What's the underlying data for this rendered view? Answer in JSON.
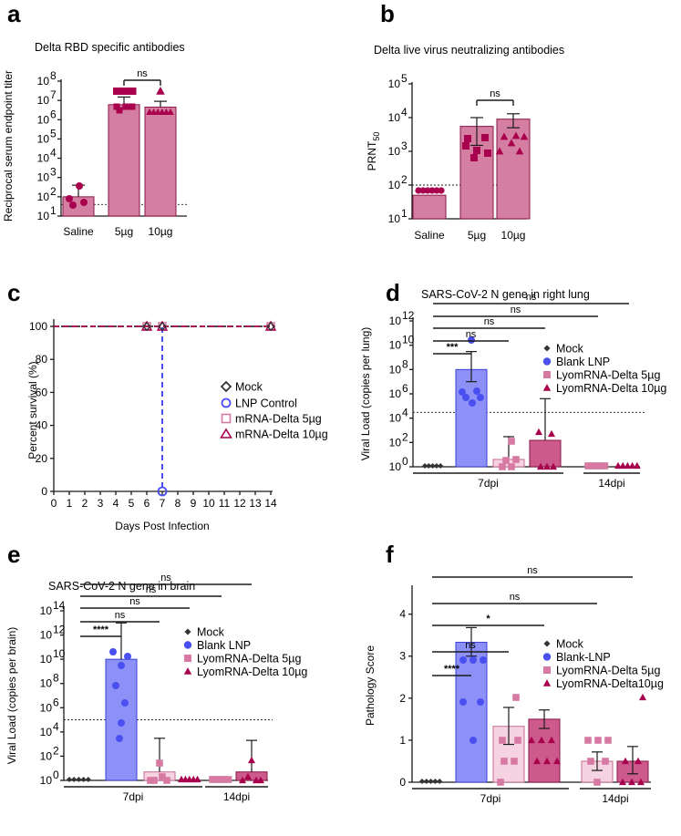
{
  "colors": {
    "saline": "#a8004c",
    "lyo5": "#d77aa3",
    "lyo10": "#a8004c",
    "bar_ab": "#d47ea1",
    "mock": "#333333",
    "lnp": "#4a4ff0",
    "lnp_bar": "#8d91f7",
    "mrna5_bar": "#f5d3e1",
    "mrna10_bar": "#cc5a8c"
  },
  "chart_data": [
    {
      "id": "a",
      "letter": "a",
      "type": "bar",
      "title": "Delta RBD specific antibodies",
      "ylabel": "Reciprocal serum endpoint titer",
      "yscale": "log10",
      "ylim_exp": [
        1,
        8
      ],
      "yticks": [
        "10",
        "10",
        "10",
        "10",
        "10",
        "10",
        "10",
        "10"
      ],
      "ytick_exps": [
        "1",
        "2",
        "3",
        "4",
        "5",
        "6",
        "7",
        "8"
      ],
      "categories": [
        "Saline",
        "5µg",
        "10µg"
      ],
      "values": [
        100,
        6000000,
        4500000
      ],
      "err_upper": [
        400,
        15000000,
        9000000
      ],
      "threshold": 40,
      "comparisons": [
        {
          "a": 1,
          "b": 2,
          "label": "ns"
        }
      ]
    },
    {
      "id": "b",
      "letter": "b",
      "type": "bar",
      "title": "Delta live virus neutralizing antibodies",
      "ylabel": "PRNT",
      "ylabel_sub": "50",
      "yscale": "log10",
      "ylim_exp": [
        1,
        5
      ],
      "yticks": [
        "10",
        "10",
        "10",
        "10",
        "10"
      ],
      "ytick_exps": [
        "1",
        "2",
        "3",
        "4",
        "5"
      ],
      "categories": [
        "Saline",
        "5µg",
        "10µg"
      ],
      "values": [
        50,
        5500,
        9000
      ],
      "err_upper": [
        50,
        10000,
        13000
      ],
      "err_lower": [
        50,
        1500,
        5000
      ],
      "threshold": 100,
      "comparisons": [
        {
          "a": 1,
          "b": 2,
          "label": "ns"
        }
      ]
    },
    {
      "id": "c",
      "letter": "c",
      "type": "line",
      "title": "",
      "ylabel": "Percent survival (%)",
      "xlabel": "Days Post Infection",
      "xlim": [
        0,
        14
      ],
      "ylim": [
        0,
        100
      ],
      "xticks": [
        "0",
        "1",
        "2",
        "3",
        "4",
        "5",
        "6",
        "7",
        "8",
        "9",
        "10",
        "11",
        "12",
        "13",
        "14"
      ],
      "yticks": [
        "0",
        "20",
        "40",
        "60",
        "80",
        "100"
      ],
      "legend_position": "right",
      "series": [
        {
          "name": "Mock",
          "x": [
            0,
            14
          ],
          "y": [
            100,
            100
          ]
        },
        {
          "name": "LNP Control",
          "x": [
            0,
            7,
            7
          ],
          "y": [
            100,
            100,
            0
          ]
        },
        {
          "name": "mRNA-Delta 5µg",
          "x": [
            0,
            14
          ],
          "y": [
            100,
            100
          ]
        },
        {
          "name": "mRNA-Delta 10µg",
          "x": [
            0,
            14
          ],
          "y": [
            100,
            100
          ]
        }
      ]
    },
    {
      "id": "d",
      "letter": "d",
      "type": "bar",
      "title": "SARS-CoV-2 N gene in right lung",
      "ylabel": "Viral Load (copies per lung)",
      "yscale": "log10",
      "yticks": [
        "10",
        "10",
        "10",
        "10",
        "10",
        "10",
        "10"
      ],
      "ytick_exps": [
        "0",
        "2",
        "4",
        "6",
        "8",
        "10",
        "12"
      ],
      "groups": [
        "7dpi",
        "14dpi"
      ],
      "legend_position": "right",
      "series": [
        {
          "name": "Mock",
          "values": [
            1,
            null
          ]
        },
        {
          "name": "Blank LNP",
          "values": [
            100000000,
            null
          ]
        },
        {
          "name": "LyomRNA-Delta 5µg",
          "values": [
            4,
            1
          ]
        },
        {
          "name": "LyomRNA-Delta 10µg",
          "values": [
            150,
            1
          ]
        }
      ],
      "threshold": 30000,
      "comparisons": [
        "***",
        "ns",
        "ns",
        "ns",
        "ns"
      ]
    },
    {
      "id": "e",
      "letter": "e",
      "type": "bar",
      "title": "SARS-CoV-2 N gene in brain",
      "ylabel": "Viral Load (copies per brain)",
      "yscale": "log10",
      "yticks": [
        "10",
        "10",
        "10",
        "10",
        "10",
        "10",
        "10",
        "10"
      ],
      "ytick_exps": [
        "0",
        "2",
        "4",
        "6",
        "8",
        "10",
        "12",
        "14"
      ],
      "groups": [
        "7dpi",
        "14dpi"
      ],
      "legend_position": "right",
      "series": [
        {
          "name": "Mock",
          "values": [
            1,
            null
          ]
        },
        {
          "name": "Blank LNP",
          "values": [
            10000000000,
            null
          ]
        },
        {
          "name": "LyomRNA-Delta 5µg",
          "values": [
            5,
            1
          ]
        },
        {
          "name": "LyomRNA-Delta 10µg",
          "values": [
            1,
            5
          ]
        }
      ],
      "threshold": 100000,
      "comparisons": [
        "****",
        "ns",
        "ns",
        "ns",
        "ns"
      ]
    },
    {
      "id": "f",
      "letter": "f",
      "type": "bar",
      "title": "",
      "ylabel": "Pathology Score",
      "yticks": [
        "0",
        "1",
        "2",
        "3",
        "4"
      ],
      "ylim": [
        0,
        4.6
      ],
      "groups": [
        "7dpi",
        "14dpi"
      ],
      "legend_position": "right",
      "series": [
        {
          "name": "Mock",
          "values": [
            0,
            null
          ]
        },
        {
          "name": "Blank-LNP",
          "values": [
            3.33,
            null
          ]
        },
        {
          "name": "LyomRNA-Delta 5µg",
          "values": [
            1.33,
            0.5
          ]
        },
        {
          "name": "LyomRNA-Delta10µg",
          "values": [
            1.5,
            0.5
          ]
        }
      ],
      "comparisons": [
        "****",
        "ns",
        "*",
        "ns",
        "ns"
      ]
    }
  ]
}
